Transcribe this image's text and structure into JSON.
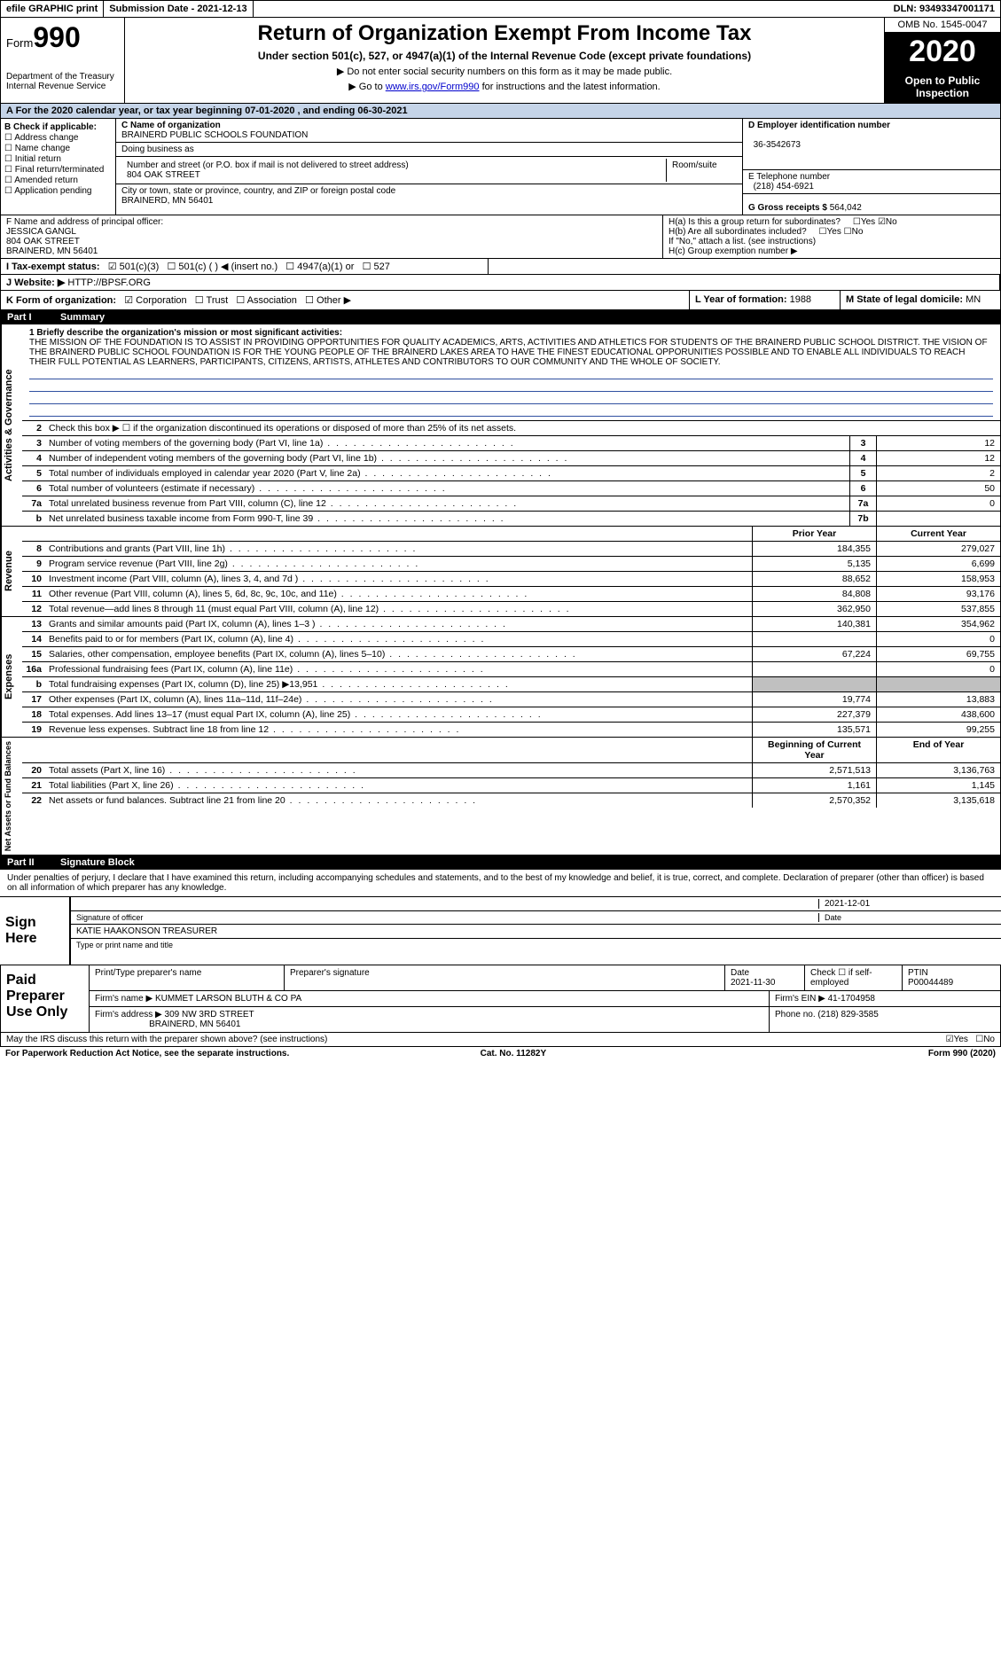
{
  "topbar": {
    "efile": "efile GRAPHIC print",
    "submission": "Submission Date - 2021-12-13",
    "dln": "DLN: 93493347001171"
  },
  "header": {
    "form_label": "Form",
    "form_num": "990",
    "dept": "Department of the Treasury\nInternal Revenue Service",
    "title": "Return of Organization Exempt From Income Tax",
    "sub": "Under section 501(c), 527, or 4947(a)(1) of the Internal Revenue Code (except private foundations)",
    "note1": "▶ Do not enter social security numbers on this form as it may be made public.",
    "note2_pre": "▶ Go to ",
    "note2_link": "www.irs.gov/Form990",
    "note2_post": " for instructions and the latest information.",
    "omb": "OMB No. 1545-0047",
    "year": "2020",
    "inspect": "Open to Public Inspection"
  },
  "period": "A For the 2020 calendar year, or tax year beginning 07-01-2020   , and ending 06-30-2021",
  "secB": {
    "label": "B Check if applicable:",
    "opts": [
      "Address change",
      "Name change",
      "Initial return",
      "Final return/terminated",
      "Amended return",
      "Application pending"
    ]
  },
  "secC": {
    "name_lbl": "C Name of organization",
    "name": "BRAINERD PUBLIC SCHOOLS FOUNDATION",
    "dba_lbl": "Doing business as",
    "addr_lbl": "Number and street (or P.O. box if mail is not delivered to street address)",
    "room_lbl": "Room/suite",
    "addr": "804 OAK STREET",
    "city_lbl": "City or town, state or province, country, and ZIP or foreign postal code",
    "city": "BRAINERD, MN  56401"
  },
  "secD": {
    "lbl": "D Employer identification number",
    "val": "36-3542673"
  },
  "secE": {
    "lbl": "E Telephone number",
    "val": "(218) 454-6921"
  },
  "secG": {
    "lbl": "G Gross receipts $",
    "val": "564,042"
  },
  "secF": {
    "lbl": "F  Name and address of principal officer:",
    "name": "JESSICA GANGL",
    "addr1": "804 OAK STREET",
    "addr2": "BRAINERD, MN  56401"
  },
  "secH": {
    "a": "H(a)  Is this a group return for subordinates?",
    "a_yes": "Yes",
    "a_no": "No",
    "b": "H(b)  Are all subordinates included?",
    "b_note": "If \"No,\" attach a list. (see instructions)",
    "c": "H(c)  Group exemption number ▶"
  },
  "secI": {
    "lbl": "I   Tax-exempt status:",
    "o1": "501(c)(3)",
    "o2": "501(c) (  ) ◀ (insert no.)",
    "o3": "4947(a)(1) or",
    "o4": "527"
  },
  "secJ": {
    "lbl": "J   Website: ▶",
    "val": "HTTP://BPSF.ORG"
  },
  "secK": {
    "lbl": "K Form of organization:",
    "o1": "Corporation",
    "o2": "Trust",
    "o3": "Association",
    "o4": "Other ▶"
  },
  "secL": {
    "lbl": "L Year of formation:",
    "val": "1988"
  },
  "secM": {
    "lbl": "M State of legal domicile:",
    "val": "MN"
  },
  "part1": {
    "num": "Part I",
    "title": "Summary"
  },
  "mission": {
    "lbl": "1   Briefly describe the organization's mission or most significant activities:",
    "text": "THE MISSION OF THE FOUNDATION IS TO ASSIST IN PROVIDING OPPORTUNITIES FOR QUALITY ACADEMICS, ARTS, ACTIVITIES AND ATHLETICS FOR STUDENTS OF THE BRAINERD PUBLIC SCHOOL DISTRICT. THE VISION OF THE BRAINERD PUBLIC SCHOOL FOUNDATION IS FOR THE YOUNG PEOPLE OF THE BRAINERD LAKES AREA TO HAVE THE FINEST EDUCATIONAL OPPORUNITIES POSSIBLE AND TO ENABLE ALL INDIVIDUALS TO REACH THEIR FULL POTENTIAL AS LEARNERS, PARTICIPANTS, CITIZENS, ARTISTS, ATHLETES AND CONTRIBUTORS TO OUR COMMUNITY AND THE WHOLE OF SOCIETY."
  },
  "gov": {
    "l2": "Check this box ▶ ☐  if the organization discontinued its operations or disposed of more than 25% of its net assets.",
    "rows": [
      {
        "n": "3",
        "d": "Number of voting members of the governing body (Part VI, line 1a)",
        "b": "3",
        "v": "12"
      },
      {
        "n": "4",
        "d": "Number of independent voting members of the governing body (Part VI, line 1b)",
        "b": "4",
        "v": "12"
      },
      {
        "n": "5",
        "d": "Total number of individuals employed in calendar year 2020 (Part V, line 2a)",
        "b": "5",
        "v": "2"
      },
      {
        "n": "6",
        "d": "Total number of volunteers (estimate if necessary)",
        "b": "6",
        "v": "50"
      },
      {
        "n": "7a",
        "d": "Total unrelated business revenue from Part VIII, column (C), line 12",
        "b": "7a",
        "v": "0"
      },
      {
        "n": "b",
        "d": "Net unrelated business taxable income from Form 990-T, line 39",
        "b": "7b",
        "v": ""
      }
    ]
  },
  "cols": {
    "prior": "Prior Year",
    "current": "Current Year"
  },
  "rev": {
    "tab": "Revenue",
    "rows": [
      {
        "n": "8",
        "d": "Contributions and grants (Part VIII, line 1h)",
        "p": "184,355",
        "c": "279,027"
      },
      {
        "n": "9",
        "d": "Program service revenue (Part VIII, line 2g)",
        "p": "5,135",
        "c": "6,699"
      },
      {
        "n": "10",
        "d": "Investment income (Part VIII, column (A), lines 3, 4, and 7d )",
        "p": "88,652",
        "c": "158,953"
      },
      {
        "n": "11",
        "d": "Other revenue (Part VIII, column (A), lines 5, 6d, 8c, 9c, 10c, and 11e)",
        "p": "84,808",
        "c": "93,176"
      },
      {
        "n": "12",
        "d": "Total revenue—add lines 8 through 11 (must equal Part VIII, column (A), line 12)",
        "p": "362,950",
        "c": "537,855"
      }
    ]
  },
  "exp": {
    "tab": "Expenses",
    "rows": [
      {
        "n": "13",
        "d": "Grants and similar amounts paid (Part IX, column (A), lines 1–3 )",
        "p": "140,381",
        "c": "354,962"
      },
      {
        "n": "14",
        "d": "Benefits paid to or for members (Part IX, column (A), line 4)",
        "p": "",
        "c": "0"
      },
      {
        "n": "15",
        "d": "Salaries, other compensation, employee benefits (Part IX, column (A), lines 5–10)",
        "p": "67,224",
        "c": "69,755"
      },
      {
        "n": "16a",
        "d": "Professional fundraising fees (Part IX, column (A), line 11e)",
        "p": "",
        "c": "0"
      },
      {
        "n": "b",
        "d": "Total fundraising expenses (Part IX, column (D), line 25) ▶13,951",
        "p": "shaded",
        "c": "shaded"
      },
      {
        "n": "17",
        "d": "Other expenses (Part IX, column (A), lines 11a–11d, 11f–24e)",
        "p": "19,774",
        "c": "13,883"
      },
      {
        "n": "18",
        "d": "Total expenses. Add lines 13–17 (must equal Part IX, column (A), line 25)",
        "p": "227,379",
        "c": "438,600"
      },
      {
        "n": "19",
        "d": "Revenue less expenses. Subtract line 18 from line 12",
        "p": "135,571",
        "c": "99,255"
      }
    ]
  },
  "net": {
    "tab": "Net Assets or Fund Balances",
    "hdr_p": "Beginning of Current Year",
    "hdr_c": "End of Year",
    "rows": [
      {
        "n": "20",
        "d": "Total assets (Part X, line 16)",
        "p": "2,571,513",
        "c": "3,136,763"
      },
      {
        "n": "21",
        "d": "Total liabilities (Part X, line 26)",
        "p": "1,161",
        "c": "1,145"
      },
      {
        "n": "22",
        "d": "Net assets or fund balances. Subtract line 21 from line 20",
        "p": "2,570,352",
        "c": "3,135,618"
      }
    ]
  },
  "part2": {
    "num": "Part II",
    "title": "Signature Block"
  },
  "sig": {
    "decl": "Under penalties of perjury, I declare that I have examined this return, including accompanying schedules and statements, and to the best of my knowledge and belief, it is true, correct, and complete. Declaration of preparer (other than officer) is based on all information of which preparer has any knowledge.",
    "sign_here": "Sign Here",
    "sig_lbl": "Signature of officer",
    "date": "2021-12-01",
    "date_lbl": "Date",
    "name": "KATIE HAAKONSON  TREASURER",
    "name_lbl": "Type or print name and title"
  },
  "prep": {
    "label": "Paid Preparer Use Only",
    "h1": "Print/Type preparer's name",
    "h2": "Preparer's signature",
    "h3": "Date",
    "h3v": "2021-11-30",
    "h4": "Check ☐ if self-employed",
    "h5": "PTIN",
    "h5v": "P00044489",
    "firm_lbl": "Firm's name    ▶",
    "firm": "KUMMET LARSON BLUTH & CO PA",
    "ein_lbl": "Firm's EIN ▶",
    "ein": "41-1704958",
    "addr_lbl": "Firm's address ▶",
    "addr1": "309 NW 3RD STREET",
    "addr2": "BRAINERD, MN  56401",
    "phone_lbl": "Phone no.",
    "phone": "(218) 829-3585"
  },
  "discuss": {
    "q": "May the IRS discuss this return with the preparer shown above? (see instructions)",
    "yes": "Yes",
    "no": "No"
  },
  "footer": {
    "pra": "For Paperwork Reduction Act Notice, see the separate instructions.",
    "cat": "Cat. No. 11282Y",
    "form": "Form 990 (2020)"
  }
}
